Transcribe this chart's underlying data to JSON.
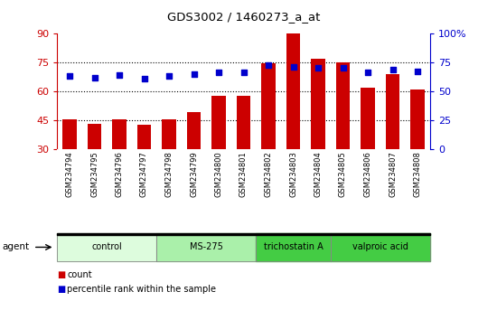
{
  "title": "GDS3002 / 1460273_a_at",
  "samples": [
    "GSM234794",
    "GSM234795",
    "GSM234796",
    "GSM234797",
    "GSM234798",
    "GSM234799",
    "GSM234800",
    "GSM234801",
    "GSM234802",
    "GSM234803",
    "GSM234804",
    "GSM234805",
    "GSM234806",
    "GSM234807",
    "GSM234808"
  ],
  "bar_values": [
    45.5,
    43.0,
    45.5,
    42.5,
    45.5,
    49.0,
    57.5,
    57.5,
    74.5,
    90.0,
    77.0,
    75.0,
    62.0,
    69.0,
    61.0
  ],
  "dot_values": [
    63,
    62,
    64,
    61,
    63,
    65,
    66,
    66,
    73,
    71,
    70,
    70,
    66,
    69,
    67
  ],
  "bar_color": "#cc0000",
  "dot_color": "#0000cc",
  "left_ylim": [
    30,
    90
  ],
  "left_yticks": [
    30,
    45,
    60,
    75,
    90
  ],
  "right_ylim": [
    0,
    100
  ],
  "right_yticks": [
    0,
    25,
    50,
    75,
    100
  ],
  "right_yticklabels": [
    "0",
    "25",
    "50",
    "75",
    "100%"
  ],
  "groups": [
    {
      "label": "control",
      "start": 0,
      "end": 4,
      "color": "#ddfcdd"
    },
    {
      "label": "MS-275",
      "start": 4,
      "end": 8,
      "color": "#aaf0aa"
    },
    {
      "label": "trichostatin A",
      "start": 8,
      "end": 11,
      "color": "#44cc44"
    },
    {
      "label": "valproic acid",
      "start": 11,
      "end": 15,
      "color": "#44cc44"
    }
  ],
  "legend_count": "count",
  "legend_pct": "percentile rank within the sample",
  "tick_label_color": "#cc0000",
  "right_tick_color": "#0000cc",
  "xtick_bg": "#cccccc",
  "plot_bg": "#ffffff"
}
